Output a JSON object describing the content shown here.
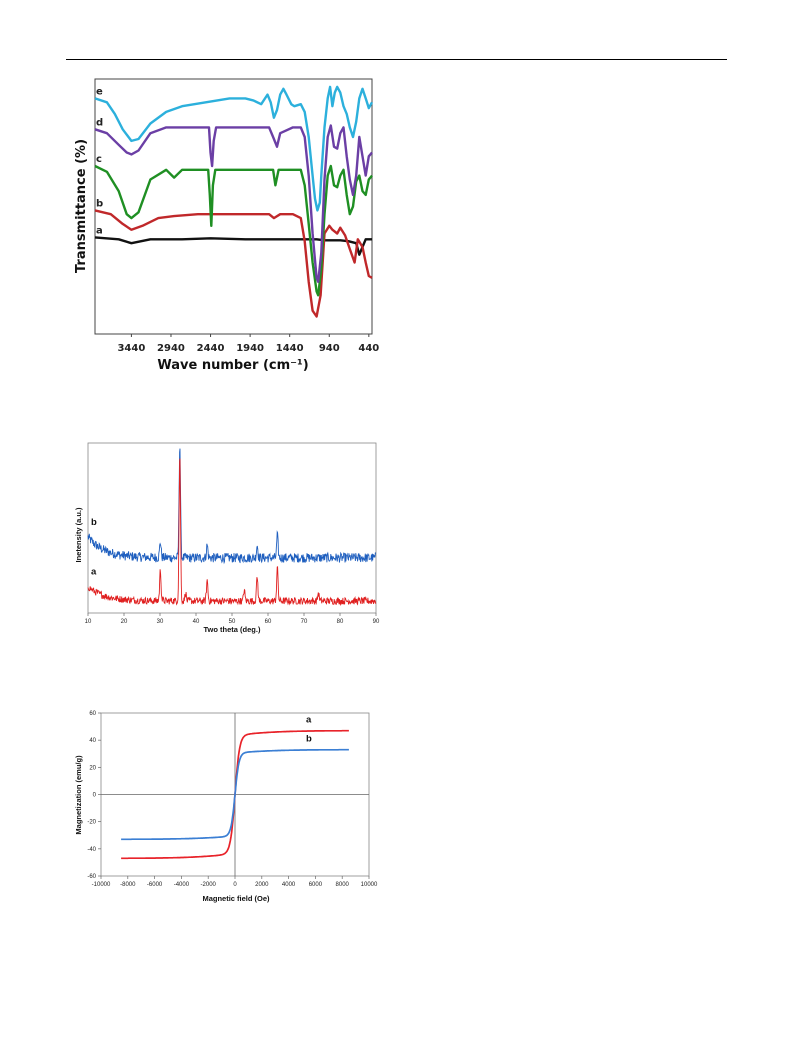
{
  "chart_data": [
    {
      "type": "line",
      "xlabel": "Wave number (cm⁻¹)",
      "ylabel": "Transmittance (%)",
      "x_reversed": true,
      "xlim": [
        3900,
        400
      ],
      "x_ticks": [
        "3440",
        "2940",
        "2440",
        "1940",
        "1440",
        "940",
        "440"
      ],
      "x_tick_values": [
        3440,
        2940,
        2440,
        1940,
        1440,
        940,
        440
      ],
      "colors": {
        "a": "#111111",
        "b": "#c0282a",
        "c": "#1f8f23",
        "d": "#6b3fa5",
        "e": "#2cb0dc"
      },
      "series": [
        {
          "name": "a",
          "points": [
            [
              3900,
              0.18
            ],
            [
              3600,
              0.17
            ],
            [
              3440,
              0.15
            ],
            [
              3200,
              0.17
            ],
            [
              2800,
              0.17
            ],
            [
              2440,
              0.175
            ],
            [
              2000,
              0.17
            ],
            [
              1500,
              0.17
            ],
            [
              1100,
              0.17
            ],
            [
              1000,
              0.165
            ],
            [
              900,
              0.165
            ],
            [
              800,
              0.165
            ],
            [
              700,
              0.16
            ],
            [
              600,
              0.15
            ],
            [
              560,
              0.09
            ],
            [
              520,
              0.13
            ],
            [
              480,
              0.17
            ],
            [
              440,
              0.17
            ],
            [
              400,
              0.17
            ]
          ]
        },
        {
          "name": "b",
          "points": [
            [
              3900,
              0.32
            ],
            [
              3700,
              0.3
            ],
            [
              3550,
              0.25
            ],
            [
              3440,
              0.22
            ],
            [
              3300,
              0.24
            ],
            [
              3100,
              0.28
            ],
            [
              2900,
              0.29
            ],
            [
              2600,
              0.3
            ],
            [
              2300,
              0.3
            ],
            [
              2000,
              0.3
            ],
            [
              1700,
              0.3
            ],
            [
              1640,
              0.28
            ],
            [
              1560,
              0.3
            ],
            [
              1400,
              0.3
            ],
            [
              1300,
              0.28
            ],
            [
              1250,
              0.16
            ],
            [
              1200,
              -0.05
            ],
            [
              1150,
              -0.2
            ],
            [
              1100,
              -0.23
            ],
            [
              1050,
              -0.12
            ],
            [
              1000,
              0.2
            ],
            [
              940,
              0.24
            ],
            [
              900,
              0.22
            ],
            [
              840,
              0.2
            ],
            [
              800,
              0.23
            ],
            [
              740,
              0.19
            ],
            [
              680,
              0.12
            ],
            [
              620,
              0.05
            ],
            [
              580,
              0.17
            ],
            [
              520,
              0.13
            ],
            [
              480,
              0.05
            ],
            [
              440,
              -0.02
            ],
            [
              400,
              -0.03
            ]
          ]
        },
        {
          "name": "c",
          "points": [
            [
              3900,
              0.55
            ],
            [
              3750,
              0.52
            ],
            [
              3600,
              0.42
            ],
            [
              3500,
              0.3
            ],
            [
              3440,
              0.28
            ],
            [
              3350,
              0.31
            ],
            [
              3200,
              0.48
            ],
            [
              3000,
              0.53
            ],
            [
              2900,
              0.49
            ],
            [
              2800,
              0.53
            ],
            [
              2600,
              0.53
            ],
            [
              2470,
              0.53
            ],
            [
              2450,
              0.4
            ],
            [
              2430,
              0.24
            ],
            [
              2410,
              0.45
            ],
            [
              2380,
              0.53
            ],
            [
              2100,
              0.53
            ],
            [
              1900,
              0.53
            ],
            [
              1650,
              0.53
            ],
            [
              1620,
              0.45
            ],
            [
              1580,
              0.53
            ],
            [
              1400,
              0.53
            ],
            [
              1300,
              0.53
            ],
            [
              1250,
              0.45
            ],
            [
              1200,
              0.25
            ],
            [
              1150,
              0.05
            ],
            [
              1100,
              -0.1
            ],
            [
              1080,
              -0.12
            ],
            [
              1040,
              0.02
            ],
            [
              1000,
              0.3
            ],
            [
              960,
              0.5
            ],
            [
              920,
              0.55
            ],
            [
              880,
              0.45
            ],
            [
              840,
              0.44
            ],
            [
              800,
              0.5
            ],
            [
              760,
              0.53
            ],
            [
              720,
              0.4
            ],
            [
              680,
              0.3
            ],
            [
              640,
              0.34
            ],
            [
              600,
              0.47
            ],
            [
              560,
              0.5
            ],
            [
              520,
              0.42
            ],
            [
              480,
              0.4
            ],
            [
              440,
              0.48
            ],
            [
              400,
              0.5
            ]
          ]
        },
        {
          "name": "d",
          "points": [
            [
              3900,
              0.74
            ],
            [
              3750,
              0.72
            ],
            [
              3600,
              0.66
            ],
            [
              3500,
              0.62
            ],
            [
              3440,
              0.61
            ],
            [
              3350,
              0.63
            ],
            [
              3200,
              0.72
            ],
            [
              3000,
              0.75
            ],
            [
              2700,
              0.75
            ],
            [
              2460,
              0.75
            ],
            [
              2440,
              0.62
            ],
            [
              2420,
              0.55
            ],
            [
              2400,
              0.68
            ],
            [
              2370,
              0.75
            ],
            [
              2000,
              0.75
            ],
            [
              1700,
              0.75
            ],
            [
              1650,
              0.7
            ],
            [
              1600,
              0.65
            ],
            [
              1560,
              0.72
            ],
            [
              1400,
              0.75
            ],
            [
              1300,
              0.75
            ],
            [
              1250,
              0.7
            ],
            [
              1200,
              0.5
            ],
            [
              1150,
              0.2
            ],
            [
              1100,
              -0.03
            ],
            [
              1080,
              -0.05
            ],
            [
              1040,
              0.1
            ],
            [
              1000,
              0.48
            ],
            [
              960,
              0.7
            ],
            [
              920,
              0.76
            ],
            [
              880,
              0.65
            ],
            [
              840,
              0.64
            ],
            [
              800,
              0.72
            ],
            [
              760,
              0.75
            ],
            [
              720,
              0.6
            ],
            [
              680,
              0.48
            ],
            [
              640,
              0.4
            ],
            [
              600,
              0.5
            ],
            [
              560,
              0.7
            ],
            [
              520,
              0.6
            ],
            [
              480,
              0.5
            ],
            [
              440,
              0.6
            ],
            [
              400,
              0.62
            ]
          ]
        },
        {
          "name": "e",
          "points": [
            [
              3900,
              0.9
            ],
            [
              3750,
              0.88
            ],
            [
              3650,
              0.82
            ],
            [
              3550,
              0.74
            ],
            [
              3440,
              0.68
            ],
            [
              3350,
              0.69
            ],
            [
              3200,
              0.77
            ],
            [
              3000,
              0.83
            ],
            [
              2800,
              0.86
            ],
            [
              2500,
              0.88
            ],
            [
              2200,
              0.9
            ],
            [
              2000,
              0.9
            ],
            [
              1900,
              0.89
            ],
            [
              1800,
              0.87
            ],
            [
              1720,
              0.92
            ],
            [
              1680,
              0.88
            ],
            [
              1640,
              0.8
            ],
            [
              1600,
              0.84
            ],
            [
              1560,
              0.92
            ],
            [
              1520,
              0.95
            ],
            [
              1480,
              0.92
            ],
            [
              1420,
              0.87
            ],
            [
              1380,
              0.86
            ],
            [
              1300,
              0.87
            ],
            [
              1250,
              0.83
            ],
            [
              1200,
              0.7
            ],
            [
              1150,
              0.5
            ],
            [
              1120,
              0.38
            ],
            [
              1090,
              0.32
            ],
            [
              1060,
              0.36
            ],
            [
              1040,
              0.5
            ],
            [
              1000,
              0.75
            ],
            [
              960,
              0.9
            ],
            [
              930,
              0.96
            ],
            [
              900,
              0.86
            ],
            [
              870,
              0.93
            ],
            [
              840,
              0.96
            ],
            [
              800,
              0.93
            ],
            [
              760,
              0.86
            ],
            [
              720,
              0.82
            ],
            [
              680,
              0.75
            ],
            [
              640,
              0.7
            ],
            [
              600,
              0.78
            ],
            [
              560,
              0.9
            ],
            [
              520,
              0.95
            ],
            [
              480,
              0.9
            ],
            [
              440,
              0.85
            ],
            [
              400,
              0.88
            ]
          ]
        }
      ]
    },
    {
      "type": "line",
      "xlabel": "Two theta (deg.)",
      "ylabel": "Inetensity (a.u.)",
      "xlim": [
        10,
        90
      ],
      "x_ticks": [
        "10",
        "20",
        "30",
        "40",
        "50",
        "60",
        "70",
        "80",
        "90"
      ],
      "x_tick_values": [
        10,
        20,
        30,
        40,
        50,
        60,
        70,
        80,
        90
      ],
      "colors": {
        "a": "#e02020",
        "b": "#1f5fbf"
      },
      "baseline": {
        "a": 0.05,
        "b": 0.32
      },
      "noise": {
        "a": 0.022,
        "b": 0.03
      },
      "low_angle_hump": {
        "a": 0.09,
        "b": 0.13
      },
      "series": [
        {
          "name": "a",
          "peaks": [
            [
              30.1,
              0.19
            ],
            [
              35.5,
              0.92
            ],
            [
              37.1,
              0.05
            ],
            [
              43.1,
              0.13
            ],
            [
              53.4,
              0.07
            ],
            [
              57.0,
              0.15
            ],
            [
              62.6,
              0.21
            ],
            [
              74.0,
              0.05
            ]
          ]
        },
        {
          "name": "b",
          "peaks": [
            [
              30.1,
              0.1
            ],
            [
              35.5,
              0.72
            ],
            [
              43.1,
              0.08
            ],
            [
              57.0,
              0.08
            ],
            [
              62.6,
              0.14
            ]
          ]
        }
      ]
    },
    {
      "type": "line",
      "xlabel": "Magnetic field (Oe)",
      "ylabel": "Magnetization (emu/g)",
      "xlim": [
        -10000,
        10000
      ],
      "ylim": [
        -60,
        60
      ],
      "x_ticks": [
        "-10000",
        "-8000",
        "-6000",
        "-4000",
        "-2000",
        "0",
        "2000",
        "4000",
        "6000",
        "8000",
        "10000"
      ],
      "x_tick_values": [
        -10000,
        -8000,
        -6000,
        -4000,
        -2000,
        0,
        2000,
        4000,
        6000,
        8000,
        10000
      ],
      "y_ticks": [
        "60",
        "40",
        "20",
        "0",
        "-20",
        "-40",
        "-60"
      ],
      "y_tick_values": [
        60,
        40,
        20,
        0,
        -20,
        -40,
        -60
      ],
      "field_range": [
        -8500,
        8500
      ],
      "colors": {
        "a": "#e8232a",
        "b": "#3b7fd4"
      },
      "series": [
        {
          "name": "a",
          "saturation_emu_g": 47
        },
        {
          "name": "b",
          "saturation_emu_g": 33
        }
      ]
    }
  ]
}
